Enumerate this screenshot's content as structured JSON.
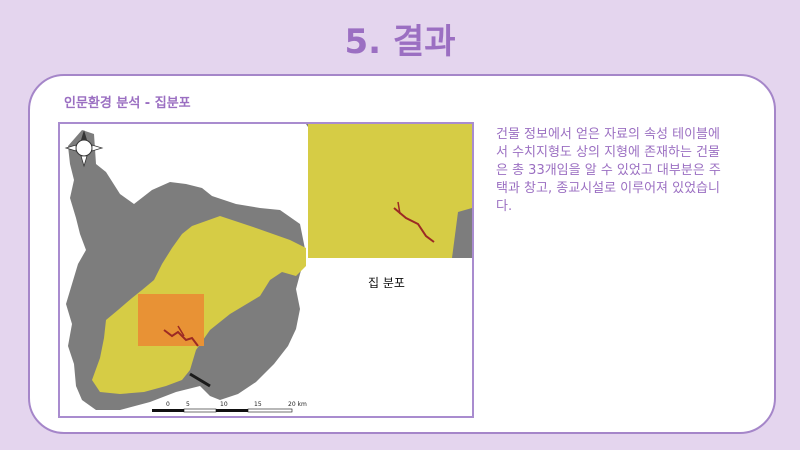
{
  "slide": {
    "title": "5. 결과",
    "subtitle": "인문환경 분석 - 집분포"
  },
  "map": {
    "inset_label": "집 분포",
    "scale_labels": [
      "0",
      "5",
      "10",
      "15",
      "20 km"
    ],
    "north_arrow_icon": "compass-rose-icon",
    "colors": {
      "terrain": "#7d7d7d",
      "study_area": "#d6cc45",
      "highlight": "#e89235",
      "buildings": "#9c2a24"
    }
  },
  "description": "건물 정보에서 얻은 자료의 속성 테이블에서 수치지형도 상의 지형에 존재하는 건물은 총 33개임을 알 수 있었고 대부분은 주택과 창고, 종교시설로 이루어져 있었습니다."
}
